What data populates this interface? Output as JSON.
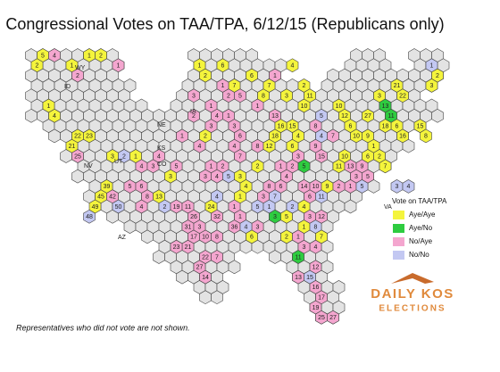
{
  "title": "Congressional Votes on TAA/TPA, 6/12/15 (Republicans only)",
  "legend": {
    "title": "Vote on TAA/TPA",
    "items": [
      {
        "label": "Aye/Aye",
        "color": "#f4f43c"
      },
      {
        "label": "Aye/No",
        "color": "#2ecc40"
      },
      {
        "label": "No/Aye",
        "color": "#f4a6cf"
      },
      {
        "label": "No/No",
        "color": "#c3c8f2"
      }
    ]
  },
  "footnote": "Representatives who did not vote are not shown.",
  "logo": {
    "line1": "DAILY KOS",
    "line2": "ELECTIONS"
  },
  "state_labels": [
    "ID",
    "WY",
    "NE",
    "KS",
    "IA",
    "NV",
    "UT",
    "CO",
    "AZ",
    "VA"
  ],
  "districts": [
    {
      "label": "5",
      "vote": "Aye/Aye"
    },
    {
      "label": "4",
      "vote": "No/Aye"
    },
    {
      "label": "2",
      "vote": "Aye/Aye"
    },
    {
      "label": "1",
      "vote": "Aye/Aye"
    },
    {
      "label": "2",
      "vote": "No/Aye"
    },
    {
      "label": "4",
      "vote": "Aye/Aye"
    },
    {
      "label": "1",
      "vote": "Aye/Aye"
    },
    {
      "label": "22",
      "vote": "Aye/Aye"
    },
    {
      "label": "21",
      "vote": "Aye/Aye"
    },
    {
      "label": "23",
      "vote": "Aye/Aye"
    },
    {
      "label": "25",
      "vote": "No/Aye"
    },
    {
      "label": "39",
      "vote": "Aye/Aye"
    },
    {
      "label": "45",
      "vote": "Aye/Aye"
    },
    {
      "label": "49",
      "vote": "Aye/Aye"
    },
    {
      "label": "50",
      "vote": "No/No"
    },
    {
      "label": "48",
      "vote": "No/No"
    },
    {
      "label": "42",
      "vote": "No/Aye"
    },
    {
      "label": "1",
      "vote": "Aye/Aye"
    },
    {
      "label": "2",
      "vote": "Aye/Aye"
    },
    {
      "label": "1",
      "vote": "No/Aye"
    },
    {
      "label": "3",
      "vote": "Aye/Aye"
    },
    {
      "label": "2",
      "vote": "No/No"
    },
    {
      "label": "1",
      "vote": "Aye/Aye"
    },
    {
      "label": "4",
      "vote": "No/Aye"
    },
    {
      "label": "3",
      "vote": "No/Aye"
    },
    {
      "label": "5",
      "vote": "No/Aye"
    },
    {
      "label": "6",
      "vote": "No/Aye"
    },
    {
      "label": "8",
      "vote": "No/Aye"
    },
    {
      "label": "4",
      "vote": "No/Aye"
    },
    {
      "label": "2",
      "vote": "No/No"
    },
    {
      "label": "4",
      "vote": "No/Aye"
    },
    {
      "label": "5",
      "vote": "No/Aye"
    },
    {
      "label": "3",
      "vote": "Aye/Aye"
    },
    {
      "label": "1",
      "vote": "Aye/Aye"
    },
    {
      "label": "2",
      "vote": "Aye/Aye"
    },
    {
      "label": "3",
      "vote": "No/Aye"
    },
    {
      "label": "1",
      "vote": "No/Aye"
    },
    {
      "label": "2",
      "vote": "No/Aye"
    },
    {
      "label": "3",
      "vote": "No/Aye"
    },
    {
      "label": "1",
      "vote": "No/Aye"
    },
    {
      "label": "4",
      "vote": "No/Aye"
    },
    {
      "label": "2",
      "vote": "Aye/Aye"
    },
    {
      "label": "13",
      "vote": "Aye/Aye"
    },
    {
      "label": "19",
      "vote": "No/Aye"
    },
    {
      "label": "11",
      "vote": "No/Aye"
    },
    {
      "label": "26",
      "vote": "No/Aye"
    },
    {
      "label": "24",
      "vote": "Aye/Aye"
    },
    {
      "label": "32",
      "vote": "No/Aye"
    },
    {
      "label": "4",
      "vote": "No/No"
    },
    {
      "label": "1",
      "vote": "No/Aye"
    },
    {
      "label": "36",
      "vote": "No/Aye"
    },
    {
      "label": "8",
      "vote": "No/Aye"
    },
    {
      "label": "10",
      "vote": "No/Aye"
    },
    {
      "label": "31",
      "vote": "No/Aye"
    },
    {
      "label": "17",
      "vote": "No/Aye"
    },
    {
      "label": "21",
      "vote": "No/Aye"
    },
    {
      "label": "23",
      "vote": "No/Aye"
    },
    {
      "label": "27",
      "vote": "No/Aye"
    },
    {
      "label": "22",
      "vote": "No/Aye"
    },
    {
      "label": "7",
      "vote": "No/Aye"
    },
    {
      "label": "14",
      "vote": "No/Aye"
    },
    {
      "label": "3",
      "vote": "No/Aye"
    },
    {
      "label": "6",
      "vote": "Aye/Aye"
    },
    {
      "label": "7",
      "vote": "Aye/Aye"
    },
    {
      "label": "1",
      "vote": "No/Aye"
    },
    {
      "label": "2",
      "vote": "No/Aye"
    },
    {
      "label": "6",
      "vote": "Aye/Aye"
    },
    {
      "label": "5",
      "vote": "No/Aye"
    },
    {
      "label": "8",
      "vote": "Aye/Aye"
    },
    {
      "label": "1",
      "vote": "No/Aye"
    },
    {
      "label": "7",
      "vote": "Aye/Aye"
    },
    {
      "label": "1",
      "vote": "No/Aye"
    },
    {
      "label": "4",
      "vote": "No/Aye"
    },
    {
      "label": "3",
      "vote": "No/Aye"
    },
    {
      "label": "6",
      "vote": "No/Aye"
    },
    {
      "label": "4",
      "vote": "No/Aye"
    },
    {
      "label": "7",
      "vote": "No/Aye"
    },
    {
      "label": "8",
      "vote": "No/Aye"
    },
    {
      "label": "2",
      "vote": "Aye/Aye"
    },
    {
      "label": "3",
      "vote": "Aye/Aye"
    },
    {
      "label": "4",
      "vote": "Aye/Aye"
    },
    {
      "label": "1",
      "vote": "Aye/Aye"
    },
    {
      "label": "5",
      "vote": "No/No"
    },
    {
      "label": "1",
      "vote": "No/Aye"
    },
    {
      "label": "3",
      "vote": "No/Aye"
    },
    {
      "label": "4",
      "vote": "No/No"
    },
    {
      "label": "6",
      "vote": "Aye/Aye"
    },
    {
      "label": "1",
      "vote": "No/Aye"
    },
    {
      "label": "2",
      "vote": "No/Aye"
    },
    {
      "label": "3",
      "vote": "No/Aye"
    },
    {
      "label": "4",
      "vote": "No/Aye"
    },
    {
      "label": "5",
      "vote": "No/No"
    },
    {
      "label": "4",
      "vote": "Aye/Aye"
    },
    {
      "label": "1",
      "vote": "No/Aye"
    },
    {
      "label": "2",
      "vote": "Aye/Aye"
    },
    {
      "label": "3",
      "vote": "Aye/Aye"
    },
    {
      "label": "10",
      "vote": "Aye/Aye"
    },
    {
      "label": "11",
      "vote": "Aye/Aye"
    },
    {
      "label": "13",
      "vote": "No/Aye"
    },
    {
      "label": "18",
      "vote": "Aye/Aye"
    },
    {
      "label": "15",
      "vote": "Aye/Aye"
    },
    {
      "label": "16",
      "vote": "Aye/Aye"
    },
    {
      "label": "12",
      "vote": "Aye/Aye"
    },
    {
      "label": "6",
      "vote": "Aye/Aye"
    },
    {
      "label": "4",
      "vote": "Aye/Aye"
    },
    {
      "label": "3",
      "vote": "No/Aye"
    },
    {
      "label": "8",
      "vote": "No/Aye"
    },
    {
      "label": "9",
      "vote": "No/Aye"
    },
    {
      "label": "5",
      "vote": "No/No"
    },
    {
      "label": "4",
      "vote": "No/No"
    },
    {
      "label": "7",
      "vote": "No/Aye"
    },
    {
      "label": "10",
      "vote": "Aye/Aye"
    },
    {
      "label": "15",
      "vote": "No/Aye"
    },
    {
      "label": "6",
      "vote": "Aye/Aye"
    },
    {
      "label": "1",
      "vote": "No/Aye"
    },
    {
      "label": "2",
      "vote": "No/Aye"
    },
    {
      "label": "5",
      "vote": "Aye/No"
    },
    {
      "label": "4",
      "vote": "No/Aye"
    },
    {
      "label": "6",
      "vote": "No/Aye"
    },
    {
      "label": "8",
      "vote": "No/Aye"
    },
    {
      "label": "7",
      "vote": "No/No"
    },
    {
      "label": "3",
      "vote": "No/Aye"
    },
    {
      "label": "1",
      "vote": "No/No"
    },
    {
      "label": "3",
      "vote": "Aye/No"
    },
    {
      "label": "5",
      "vote": "Aye/Aye"
    },
    {
      "label": "2",
      "vote": "No/No"
    },
    {
      "label": "4",
      "vote": "Aye/Aye"
    },
    {
      "label": "1",
      "vote": "Aye/Aye"
    },
    {
      "label": "6",
      "vote": "No/Aye"
    },
    {
      "label": "14",
      "vote": "No/Aye"
    },
    {
      "label": "10",
      "vote": "No/Aye"
    },
    {
      "label": "11",
      "vote": "No/No"
    },
    {
      "label": "9",
      "vote": "Aye/Aye"
    },
    {
      "label": "3",
      "vote": "No/Aye"
    },
    {
      "label": "8",
      "vote": "No/No"
    },
    {
      "label": "12",
      "vote": "No/Aye"
    },
    {
      "label": "2",
      "vote": "Aye/Aye"
    },
    {
      "label": "1",
      "vote": "No/Aye"
    },
    {
      "label": "7",
      "vote": "Aye/Aye"
    },
    {
      "label": "4",
      "vote": "No/Aye"
    },
    {
      "label": "3",
      "vote": "No/Aye"
    },
    {
      "label": "11",
      "vote": "Aye/No"
    },
    {
      "label": "12",
      "vote": "No/Aye"
    },
    {
      "label": "13",
      "vote": "No/Aye"
    },
    {
      "label": "15",
      "vote": "No/No"
    },
    {
      "label": "16",
      "vote": "No/Aye"
    },
    {
      "label": "17",
      "vote": "No/Aye"
    },
    {
      "label": "19",
      "vote": "No/Aye"
    },
    {
      "label": "25",
      "vote": "No/Aye"
    },
    {
      "label": "27",
      "vote": "No/Aye"
    },
    {
      "label": "3",
      "vote": "No/Aye"
    },
    {
      "label": "1",
      "vote": "No/Aye"
    },
    {
      "label": "2",
      "vote": "No/Aye"
    },
    {
      "label": "5",
      "vote": "No/No"
    },
    {
      "label": "10",
      "vote": "Aye/Aye"
    },
    {
      "label": "11",
      "vote": "Aye/Aye"
    },
    {
      "label": "13",
      "vote": "No/Aye"
    },
    {
      "label": "9",
      "vote": "No/Aye"
    },
    {
      "label": "6",
      "vote": "Aye/Aye"
    },
    {
      "label": "7",
      "vote": "Aye/Aye"
    },
    {
      "label": "5",
      "vote": "No/Aye"
    },
    {
      "label": "1",
      "vote": "Aye/Aye"
    },
    {
      "label": "2",
      "vote": "Aye/Aye"
    },
    {
      "label": "3",
      "vote": "No/No"
    },
    {
      "label": "4",
      "vote": "No/No"
    },
    {
      "label": "3",
      "vote": "Aye/Aye"
    },
    {
      "label": "21",
      "vote": "Aye/Aye"
    },
    {
      "label": "22",
      "vote": "Aye/Aye"
    },
    {
      "label": "27",
      "vote": "Aye/Aye"
    },
    {
      "label": "13",
      "vote": "Aye/No"
    },
    {
      "label": "11",
      "vote": "Aye/No"
    },
    {
      "label": "12",
      "vote": "Aye/Aye"
    },
    {
      "label": "10",
      "vote": "Aye/Aye"
    },
    {
      "label": "9",
      "vote": "Aye/Aye"
    },
    {
      "label": "6",
      "vote": "Aye/Aye"
    },
    {
      "label": "18",
      "vote": "Aye/Aye"
    },
    {
      "label": "15",
      "vote": "Aye/Aye"
    },
    {
      "label": "16",
      "vote": "Aye/Aye"
    },
    {
      "label": "8",
      "vote": "Aye/Aye"
    },
    {
      "label": "3",
      "vote": "Aye/Aye"
    },
    {
      "label": "1",
      "vote": "No/No"
    },
    {
      "label": "2",
      "vote": "Aye/Aye"
    }
  ]
}
